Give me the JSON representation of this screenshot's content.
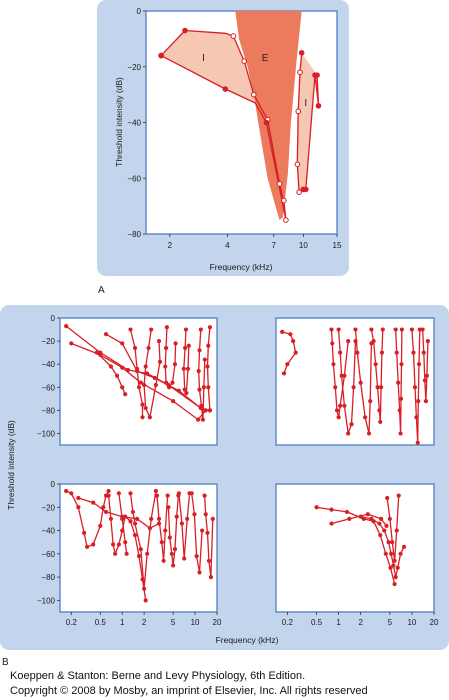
{
  "panel_labels": [
    "A",
    "B"
  ],
  "caption": {
    "line1": "Koeppen & Stanton: Berne and Levy Physiology, 6th Edition.",
    "line2": "Copyright © 2008 by Mosby, an imprint of Elsevier, Inc. All rights reserved"
  },
  "colors": {
    "panel_bg": "#c3d5ec",
    "frame": "#5b86c6",
    "curve": "#d81f26",
    "excitatory_fill": "#ec7a5c",
    "inhibitory_fill": "#f6c7b3"
  },
  "chart_data": [
    {
      "type": "line",
      "panel": "A",
      "xscale": "log",
      "xlim": [
        1.5,
        15
      ],
      "ylim": [
        -80,
        0
      ],
      "xticks": [
        2,
        4,
        7,
        10,
        15
      ],
      "xtick_labels": [
        "2",
        "4",
        "7",
        "10",
        "15"
      ],
      "yticks": [
        0,
        -20,
        -40,
        -60,
        -80
      ],
      "ytick_labels": [
        "0",
        "−20",
        "−40",
        "−60",
        "−80"
      ],
      "xlabel": "Frequency (kHz)",
      "ylabel": "Threshold intensity (dB)",
      "region_labels": [
        {
          "text": "I",
          "x": 3.0,
          "y": -18
        },
        {
          "text": "E",
          "x": 6.3,
          "y": -18
        },
        {
          "text": "I",
          "x": 10.3,
          "y": -34
        }
      ],
      "excitatory_area": {
        "x": [
          4.4,
          9.8,
          9.2,
          8.6,
          8.3,
          8.0,
          7.8,
          7.5,
          6.5,
          5.8,
          5.5,
          5.1,
          4.6,
          4.4
        ],
        "y": [
          0,
          0,
          -18,
          -40,
          -58,
          -68,
          -74,
          -75,
          -60,
          -40,
          -30,
          -20,
          -10,
          0
        ]
      },
      "series": [
        {
          "role": "lower-frequency inhibitory band",
          "x": [
            1.8,
            2.4,
            3.9,
            4.3,
            4.9,
            5.5,
            6.5,
            7.5,
            7.9,
            8.1,
            6.4,
            5.6,
            3.9,
            1.8
          ],
          "y": [
            -16,
            -7,
            -8,
            -9,
            -18,
            -30,
            -39,
            -62,
            -68,
            -75,
            -40,
            -33,
            -28,
            -16
          ],
          "marker": [
            true,
            true,
            false,
            true,
            true,
            true,
            true,
            true,
            true,
            true,
            true,
            false,
            true,
            true
          ],
          "hollow": [
            false,
            false,
            true,
            true,
            true,
            true,
            true,
            true,
            true,
            true,
            false,
            false,
            false,
            false
          ]
        },
        {
          "role": "higher-frequency inhibitory band",
          "x": [
            9.8,
            9.6,
            9.4,
            9.3,
            9.5,
            10.0,
            10.3,
            11.5,
            12.0,
            11.8
          ],
          "y": [
            -15,
            -22,
            -36,
            -55,
            -65,
            -64,
            -64,
            -23,
            -34,
            -23
          ],
          "marker": [
            true,
            true,
            true,
            true,
            true,
            true,
            true,
            true,
            true,
            true
          ],
          "hollow": [
            false,
            true,
            true,
            true,
            true,
            false,
            false,
            false,
            false,
            false
          ]
        }
      ]
    },
    {
      "type": "line",
      "panel": "B",
      "xscale": "log",
      "xlim": [
        0.14,
        20
      ],
      "ylim": [
        -110,
        0
      ],
      "xticks": [
        0.2,
        0.5,
        1,
        2,
        5,
        10,
        20
      ],
      "xtick_labels": [
        "0.2",
        "0.5",
        "1",
        "2",
        "5",
        "10",
        "20"
      ],
      "yticks": [
        0,
        -20,
        -40,
        -60,
        -80,
        -100
      ],
      "ytick_labels": [
        "0",
        "−20",
        "−40",
        "−60",
        "−80",
        "−100"
      ],
      "xlabel": "Frequency (kHz)",
      "ylabel": "Threshold intensity (dB)",
      "subplots": [
        {
          "position": "top-left",
          "curves": [
            {
              "x": [
                0.17,
                0.5,
                1.2,
                2.2,
                4.3,
                12.0,
                16
              ],
              "y": [
                -7,
                -30,
                -45,
                -48,
                -58,
                -78,
                -80
              ]
            },
            {
              "x": [
                0.2,
                0.5,
                1.0,
                1.8,
                5.0,
                11.0,
                14
              ],
              "y": [
                -22,
                -32,
                -43,
                -56,
                -72,
                -88,
                -80
              ]
            },
            {
              "x": [
                0.6,
                1.0,
                1.6,
                2.8,
                6.0,
                12.0
              ],
              "y": [
                -14,
                -22,
                -46,
                -52,
                -63,
                -78
              ]
            },
            {
              "x": [
                0.45,
                0.7,
                0.85,
                1.0,
                1.1
              ],
              "y": [
                -30,
                -42,
                -50,
                -60,
                -66
              ]
            },
            {
              "x": [
                1.3,
                1.5,
                1.6,
                1.7,
                1.9,
                1.9
              ],
              "y": [
                -10,
                -26,
                -44,
                -60,
                -75,
                -86
              ]
            },
            {
              "x": [
                2.5,
                2.3,
                2.1,
                2.0,
                2.1,
                2.4,
                2.9,
                3.3,
                3.2
              ],
              "y": [
                -10,
                -26,
                -42,
                -58,
                -78,
                -86,
                -58,
                -38,
                -20
              ]
            },
            {
              "x": [
                4.1,
                4.0,
                3.9,
                4.0,
                4.4,
                4.9,
                5.3,
                5.4
              ],
              "y": [
                -8,
                -26,
                -42,
                -56,
                -60,
                -56,
                -40,
                -22
              ]
            },
            {
              "x": [
                7.5,
                7.3,
                7.0,
                7.2,
                7.6,
                8.0,
                8.2
              ],
              "y": [
                -10,
                -26,
                -44,
                -62,
                -65,
                -44,
                -24
              ]
            },
            {
              "x": [
                12.0,
                11.5,
                11.2,
                11.5,
                12.2,
                12.8,
                13.2,
                13.6
              ],
              "y": [
                -10,
                -28,
                -46,
                -62,
                -76,
                -88,
                -60,
                -36
              ]
            },
            {
              "x": [
                16.0,
                15.2,
                14.8,
                15.2,
                16.0
              ],
              "y": [
                -8,
                -24,
                -42,
                -60,
                -80
              ]
            }
          ]
        },
        {
          "position": "top-right",
          "curves": [
            {
              "x": [
                0.17,
                0.22,
                0.24,
                0.26,
                0.2,
                0.18
              ],
              "y": [
                -12,
                -14,
                -20,
                -30,
                -40,
                -48
              ]
            },
            {
              "x": [
                0.8,
                0.82,
                0.85,
                0.9,
                0.95,
                1.0,
                1.05,
                1.2,
                1.35
              ],
              "y": [
                -10,
                -22,
                -40,
                -60,
                -80,
                -86,
                -76,
                -50,
                -20
              ]
            },
            {
              "x": [
                1.0,
                1.05,
                1.1,
                1.2,
                1.35,
                1.5,
                1.6,
                1.7
              ],
              "y": [
                -10,
                -30,
                -50,
                -76,
                -100,
                -92,
                -60,
                -20
              ]
            },
            {
              "x": [
                1.7,
                1.8,
                2.0,
                2.3,
                2.6,
                2.7,
                2.8
              ],
              "y": [
                -10,
                -30,
                -56,
                -86,
                -100,
                -72,
                -22
              ]
            },
            {
              "x": [
                2.8,
                3.0,
                3.2,
                3.4,
                3.6,
                3.7,
                3.8,
                3.9,
                4.0
              ],
              "y": [
                -10,
                -20,
                -40,
                -60,
                -80,
                -90,
                -60,
                -30,
                -10
              ]
            },
            {
              "x": [
                6.0,
                6.2,
                6.5,
                6.8,
                7.0,
                7.1,
                7.2,
                7.3
              ],
              "y": [
                -10,
                -30,
                -56,
                -80,
                -100,
                -70,
                -40,
                -10
              ]
            },
            {
              "x": [
                10.0,
                10.5,
                11.0,
                11.5,
                12.0,
                12.2,
                12.5,
                12.8
              ],
              "y": [
                -10,
                -30,
                -60,
                -86,
                -108,
                -72,
                -40,
                -10
              ]
            },
            {
              "x": [
                14.0,
                14.5,
                15.0,
                15.5,
                16.0,
                16.5
              ],
              "y": [
                -10,
                -30,
                -54,
                -72,
                -50,
                -20
              ]
            }
          ]
        },
        {
          "position": "bottom-left",
          "curves": [
            {
              "x": [
                0.17,
                0.2,
                0.25,
                0.3,
                0.33,
                0.4,
                0.5,
                0.55,
                0.6,
                0.65
              ],
              "y": [
                -6,
                -8,
                -20,
                -42,
                -54,
                -52,
                -36,
                -20,
                -10,
                -6
              ]
            },
            {
              "x": [
                0.25,
                0.4,
                0.6,
                1.0,
                1.6,
                2.4,
                3.2
              ],
              "y": [
                -12,
                -16,
                -24,
                -28,
                -30,
                -38,
                -34
              ]
            },
            {
              "x": [
                0.65,
                0.7,
                0.75,
                0.8,
                0.9,
                1.0,
                1.1,
                1.3,
                1.5,
                1.7,
                1.9,
                2.1
              ],
              "y": [
                -10,
                -30,
                -52,
                -60,
                -52,
                -40,
                -28,
                -32,
                -44,
                -62,
                -82,
                -100
              ]
            },
            {
              "x": [
                0.9,
                1.0,
                1.1,
                1.15
              ],
              "y": [
                -8,
                -30,
                -50,
                -60
              ]
            },
            {
              "x": [
                1.3,
                1.4,
                1.5,
                1.8,
                2.0,
                2.2,
                2.5,
                2.9
              ],
              "y": [
                -8,
                -24,
                -34,
                -56,
                -90,
                -60,
                -30,
                -6
              ]
            },
            {
              "x": [
                3.0,
                3.2,
                3.5,
                3.7,
                3.9,
                4.2
              ],
              "y": [
                -10,
                -30,
                -50,
                -66,
                -40,
                -10
              ]
            },
            {
              "x": [
                4.3,
                4.5,
                4.8,
                5.0,
                5.3,
                5.6,
                5.9
              ],
              "y": [
                -20,
                -46,
                -60,
                -70,
                -56,
                -28,
                -10
              ]
            },
            {
              "x": [
                6.0,
                6.6,
                7.1,
                7.8,
                8.4
              ],
              "y": [
                -8,
                -34,
                -64,
                -30,
                -8
              ]
            },
            {
              "x": [
                9.0,
                9.8,
                10.5,
                11.5,
                12.5
              ],
              "y": [
                -8,
                -26,
                -62,
                -76,
                -40
              ]
            },
            {
              "x": [
                13.5,
                14.0,
                14.8,
                15.5,
                16.5,
                17.5
              ],
              "y": [
                -10,
                -26,
                -42,
                -66,
                -80,
                -30
              ]
            }
          ]
        },
        {
          "position": "bottom-right",
          "curves": [
            {
              "x": [
                0.5,
                0.8,
                1.3,
                2.2,
                3.0,
                3.7,
                4.4,
                5.1,
                5.8
              ],
              "y": [
                -20,
                -22,
                -24,
                -30,
                -32,
                -44,
                -60,
                -72,
                -86
              ]
            },
            {
              "x": [
                0.8,
                1.4,
                2.5,
                3.8,
                4.5
              ],
              "y": [
                -34,
                -30,
                -26,
                -30,
                -36
              ]
            },
            {
              "x": [
                2.0,
                2.8,
                3.6,
                4.2,
                4.8,
                5.2,
                5.6,
                6.0,
                6.4,
                7.0,
                7.8
              ],
              "y": [
                -28,
                -30,
                -34,
                -40,
                -50,
                -60,
                -70,
                -80,
                -72,
                -60,
                -54
              ]
            },
            {
              "x": [
                4.6,
                5.0,
                5.4,
                5.8,
                6.2,
                6.6
              ],
              "y": [
                -12,
                -30,
                -50,
                -66,
                -40,
                -10
              ]
            }
          ]
        }
      ]
    }
  ]
}
